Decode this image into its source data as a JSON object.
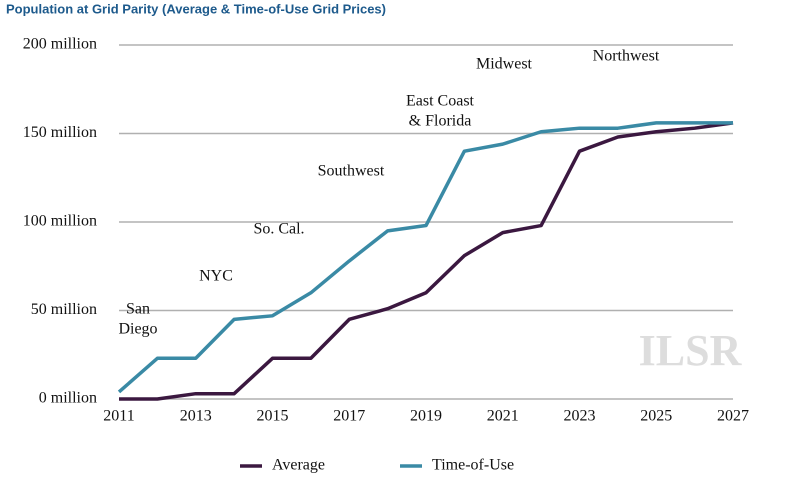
{
  "chart_data": {
    "type": "line",
    "title": "Population at Grid Parity (Average & Time-of-Use Grid Prices)",
    "x": [
      2011,
      2012,
      2013,
      2014,
      2015,
      2016,
      2017,
      2018,
      2019,
      2020,
      2021,
      2022,
      2023,
      2024,
      2025,
      2026,
      2027
    ],
    "series": [
      {
        "name": "Average",
        "color": "#3b1840",
        "values": [
          0,
          0,
          3,
          3,
          23,
          23,
          45,
          51,
          60,
          81,
          94,
          98,
          140,
          148,
          151,
          153,
          156
        ]
      },
      {
        "name": "Time-of-Use",
        "color": "#3a8aa5",
        "values": [
          4,
          23,
          23,
          45,
          47,
          60,
          78,
          95,
          98,
          140,
          144,
          151,
          153,
          153,
          156,
          156,
          156
        ]
      }
    ],
    "xlim": [
      2011,
      2027
    ],
    "xticks": [
      2011,
      2013,
      2015,
      2017,
      2019,
      2021,
      2023,
      2025,
      2027
    ],
    "ylim": [
      0,
      200
    ],
    "yticks": [
      {
        "value": 0,
        "label": "0 million"
      },
      {
        "value": 50,
        "label": "50 million"
      },
      {
        "value": 100,
        "label": "100 million"
      },
      {
        "value": 150,
        "label": "150 million"
      },
      {
        "value": 200,
        "label": "200 million"
      }
    ],
    "grid": true,
    "legend": "bottom",
    "annotations": [
      [
        "San",
        "Diego"
      ],
      [
        "NYC"
      ],
      [
        "So. Cal."
      ],
      [
        "Southwest"
      ],
      [
        "East Coast",
        "& Florida"
      ],
      [
        "Midwest"
      ],
      [
        "Northwest"
      ]
    ],
    "watermark": "ILSR"
  }
}
